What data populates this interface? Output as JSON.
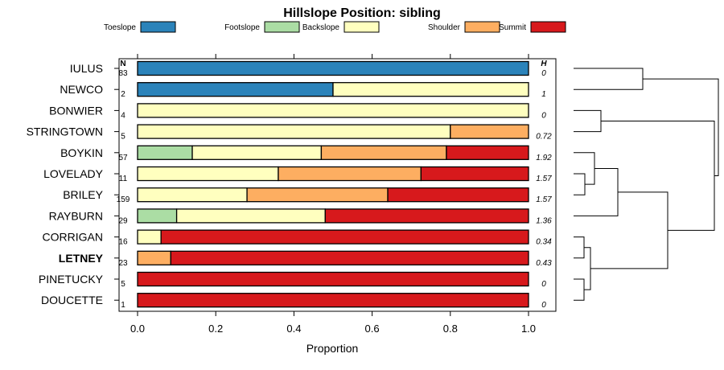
{
  "chart_data": {
    "type": "bar",
    "orientation": "horizontal-stacked",
    "title": "Hillslope Position: sibling",
    "xlabel": "Proportion",
    "xlim": [
      0,
      1
    ],
    "xticks": [
      "0.0",
      "0.2",
      "0.4",
      "0.6",
      "0.8",
      "1.0"
    ],
    "n_header": "N",
    "h_header": "H",
    "legend": [
      {
        "name": "Toeslope",
        "color": "#2b83ba"
      },
      {
        "name": "Footslope",
        "color": "#abdda4"
      },
      {
        "name": "Backslope",
        "color": "#ffffbf"
      },
      {
        "name": "Shoulder",
        "color": "#fdae61"
      },
      {
        "name": "Summit",
        "color": "#d7191c"
      }
    ],
    "categories": [
      "IULUS",
      "NEWCO",
      "BONWIER",
      "STRINGTOWN",
      "BOYKIN",
      "LOVELADY",
      "BRILEY",
      "RAYBURN",
      "CORRIGAN",
      "LETNEY",
      "PINETUCKY",
      "DOUCETTE"
    ],
    "highlight": "LETNEY",
    "n": [
      "83",
      "2",
      "4",
      "5",
      "57",
      "11",
      "159",
      "29",
      "16",
      "23",
      "5",
      "1"
    ],
    "h": [
      "0",
      "1",
      "0",
      "0.72",
      "1.92",
      "1.57",
      "1.57",
      "1.36",
      "0.34",
      "0.43",
      "0",
      "0"
    ],
    "series": [
      {
        "name": "Toeslope",
        "values": [
          1.0,
          0.5,
          0,
          0,
          0,
          0,
          0,
          0,
          0,
          0,
          0,
          0
        ]
      },
      {
        "name": "Footslope",
        "values": [
          0,
          0,
          0,
          0,
          0.14,
          0,
          0,
          0.1,
          0,
          0,
          0,
          0
        ]
      },
      {
        "name": "Backslope",
        "values": [
          0,
          0.5,
          1.0,
          0.8,
          0.33,
          0.36,
          0.28,
          0.38,
          0.06,
          0,
          0,
          0
        ]
      },
      {
        "name": "Shoulder",
        "values": [
          0,
          0,
          0,
          0.2,
          0.32,
          0.365,
          0.36,
          0,
          0,
          0.085,
          0,
          0
        ]
      },
      {
        "name": "Summit",
        "values": [
          0,
          0,
          0,
          0,
          0.21,
          0.275,
          0.36,
          0.52,
          0.94,
          0.915,
          1.0,
          1.0
        ]
      }
    ],
    "dendrogram": "clusters: ((IULUS,NEWCO),((BONWIER,STRINGTOWN),(((BOYKIN,(LOVELADY,BRILEY)),RAYBURN),((CORRIGAN,LETNEY),(PINETUCKY,DOUCETTE)))))"
  }
}
